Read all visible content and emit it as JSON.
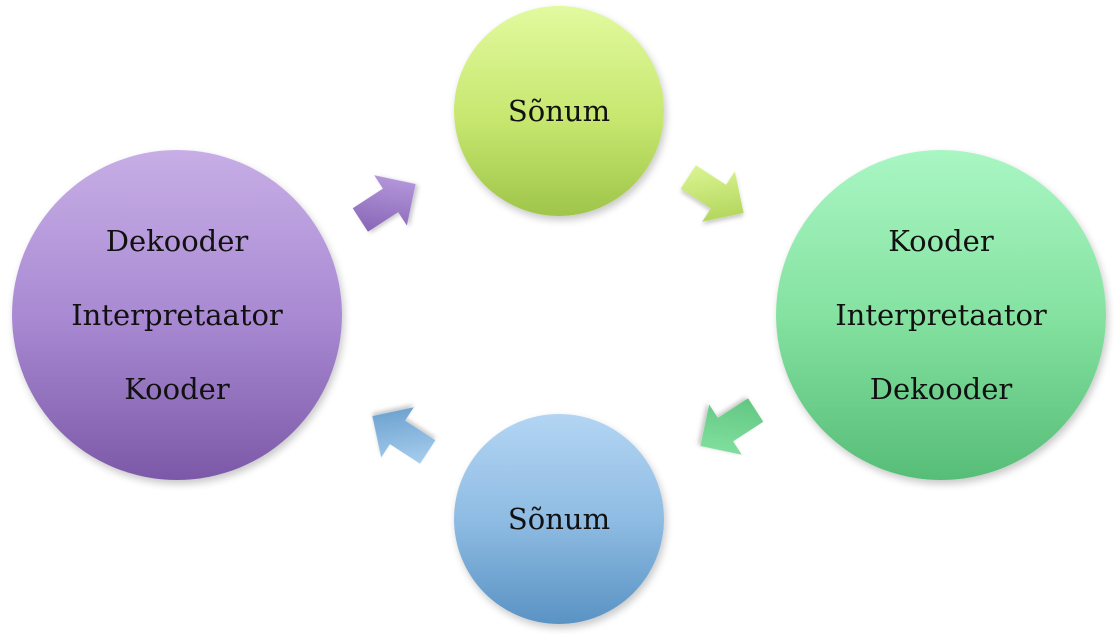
{
  "nodes": {
    "left": {
      "lines": [
        "Dekooder",
        "Interpretaator",
        "Kooder"
      ]
    },
    "top": {
      "lines": [
        "Sõnum"
      ]
    },
    "right": {
      "lines": [
        "Kooder",
        "Interpretaator",
        "Dekooder"
      ]
    },
    "bottom": {
      "lines": [
        "Sõnum"
      ]
    }
  },
  "colors": {
    "left": "#a98ad3",
    "top": "#c6e66e",
    "right": "#85e2a1",
    "bottom": "#8fbce3"
  }
}
